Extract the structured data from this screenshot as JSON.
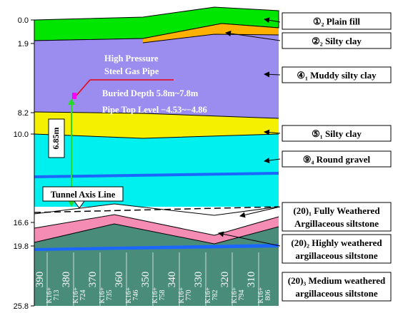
{
  "depth_scale": [
    "0.0",
    "1.9",
    "8.2",
    "10.0",
    "16.6",
    "19.8",
    "25.8"
  ],
  "layers": [
    {
      "label": "①₂ Plain fill",
      "color": "#00e600"
    },
    {
      "label": "②₂ Silty clay",
      "color": "#ffb000"
    },
    {
      "label": "④₁ Muddy silty clay",
      "color": "#9b8cf0"
    },
    {
      "label": "⑤₁ Silty clay",
      "color": "#f5f000"
    },
    {
      "label": "⑨₄ Round gravel",
      "color": "#00f0f0"
    },
    {
      "label_line1": "(20)₁ Fully Weathered",
      "label_line2": "Argillaceous siltstone",
      "color": "#ffffff"
    },
    {
      "label_line1": "(20)₂ Highly weathered",
      "label_line2": "argillaceous siltstone",
      "color": "#f58cb4"
    },
    {
      "label_line1": "(20)₃ Medium weathered",
      "label_line2": "argillaceous siltstone",
      "color": "#4a8c7a"
    }
  ],
  "pipe": {
    "title_line1": "High Pressure",
    "title_line2": "Steel Gas Pipe",
    "buried_depth": "Buried Depth 5.8m~7.8m",
    "top_level": "Pipe Top Level −4.53~−4.86"
  },
  "clearance": "6.85m",
  "tunnel_label": "Tunnel Axis Line",
  "stations": [
    {
      "chainage": "390",
      "code_a": "K16+",
      "code_b": "713"
    },
    {
      "chainage": "380",
      "code_a": "K16+",
      "code_b": "724"
    },
    {
      "chainage": "370",
      "code_a": "K16+",
      "code_b": "735"
    },
    {
      "chainage": "360",
      "code_a": "K16+",
      "code_b": "746"
    },
    {
      "chainage": "350",
      "code_a": "K16+",
      "code_b": "758"
    },
    {
      "chainage": "340",
      "code_a": "K16+",
      "code_b": "770"
    },
    {
      "chainage": "330",
      "code_a": "K16+",
      "code_b": "782"
    },
    {
      "chainage": "320",
      "code_a": "K16+",
      "code_b": "794"
    },
    {
      "chainage": "310",
      "code_a": "K16+",
      "code_b": "806"
    }
  ]
}
